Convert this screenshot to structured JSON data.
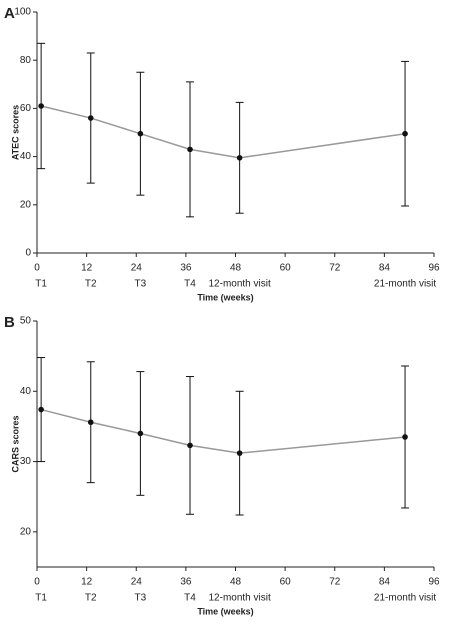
{
  "chart_data": [
    {
      "type": "line",
      "panel_label": "A",
      "y_label": "ATEC scores",
      "x_label": "Time (weeks)",
      "x": [
        1,
        13,
        25,
        37,
        49,
        89
      ],
      "point_labels": [
        "T1",
        "T2",
        "T3",
        "T4",
        "12-month visit",
        "21-month visit"
      ],
      "series": [
        {
          "color": "#999999",
          "marker_color": "#111111",
          "values": [
            61,
            56,
            49.5,
            43,
            39.5,
            49.5
          ],
          "errors": [
            26,
            27,
            25.5,
            28,
            23,
            30
          ]
        }
      ],
      "xlim": [
        0,
        96
      ],
      "xticks": [
        0,
        12,
        24,
        36,
        48,
        60,
        72,
        84,
        96
      ],
      "ylim": [
        0,
        100
      ],
      "yticks": [
        0,
        20,
        40,
        60,
        80,
        100
      ]
    },
    {
      "type": "line",
      "panel_label": "B",
      "y_label": "CARS scores",
      "x_label": "Time (weeks)",
      "x": [
        1,
        13,
        25,
        37,
        49,
        89
      ],
      "point_labels": [
        "T1",
        "T2",
        "T3",
        "T4",
        "12-month visit",
        "21-month visit"
      ],
      "series": [
        {
          "color": "#999999",
          "marker_color": "#111111",
          "values": [
            37.4,
            35.6,
            34,
            32.3,
            31.2,
            33.5
          ],
          "errors": [
            7.4,
            8.6,
            8.8,
            9.8,
            8.8,
            10.1
          ]
        }
      ],
      "xlim": [
        0,
        96
      ],
      "xticks": [
        0,
        12,
        24,
        36,
        48,
        60,
        72,
        84,
        96
      ],
      "ylim": [
        15,
        50
      ],
      "yticks": [
        20,
        30,
        40,
        50
      ]
    }
  ]
}
